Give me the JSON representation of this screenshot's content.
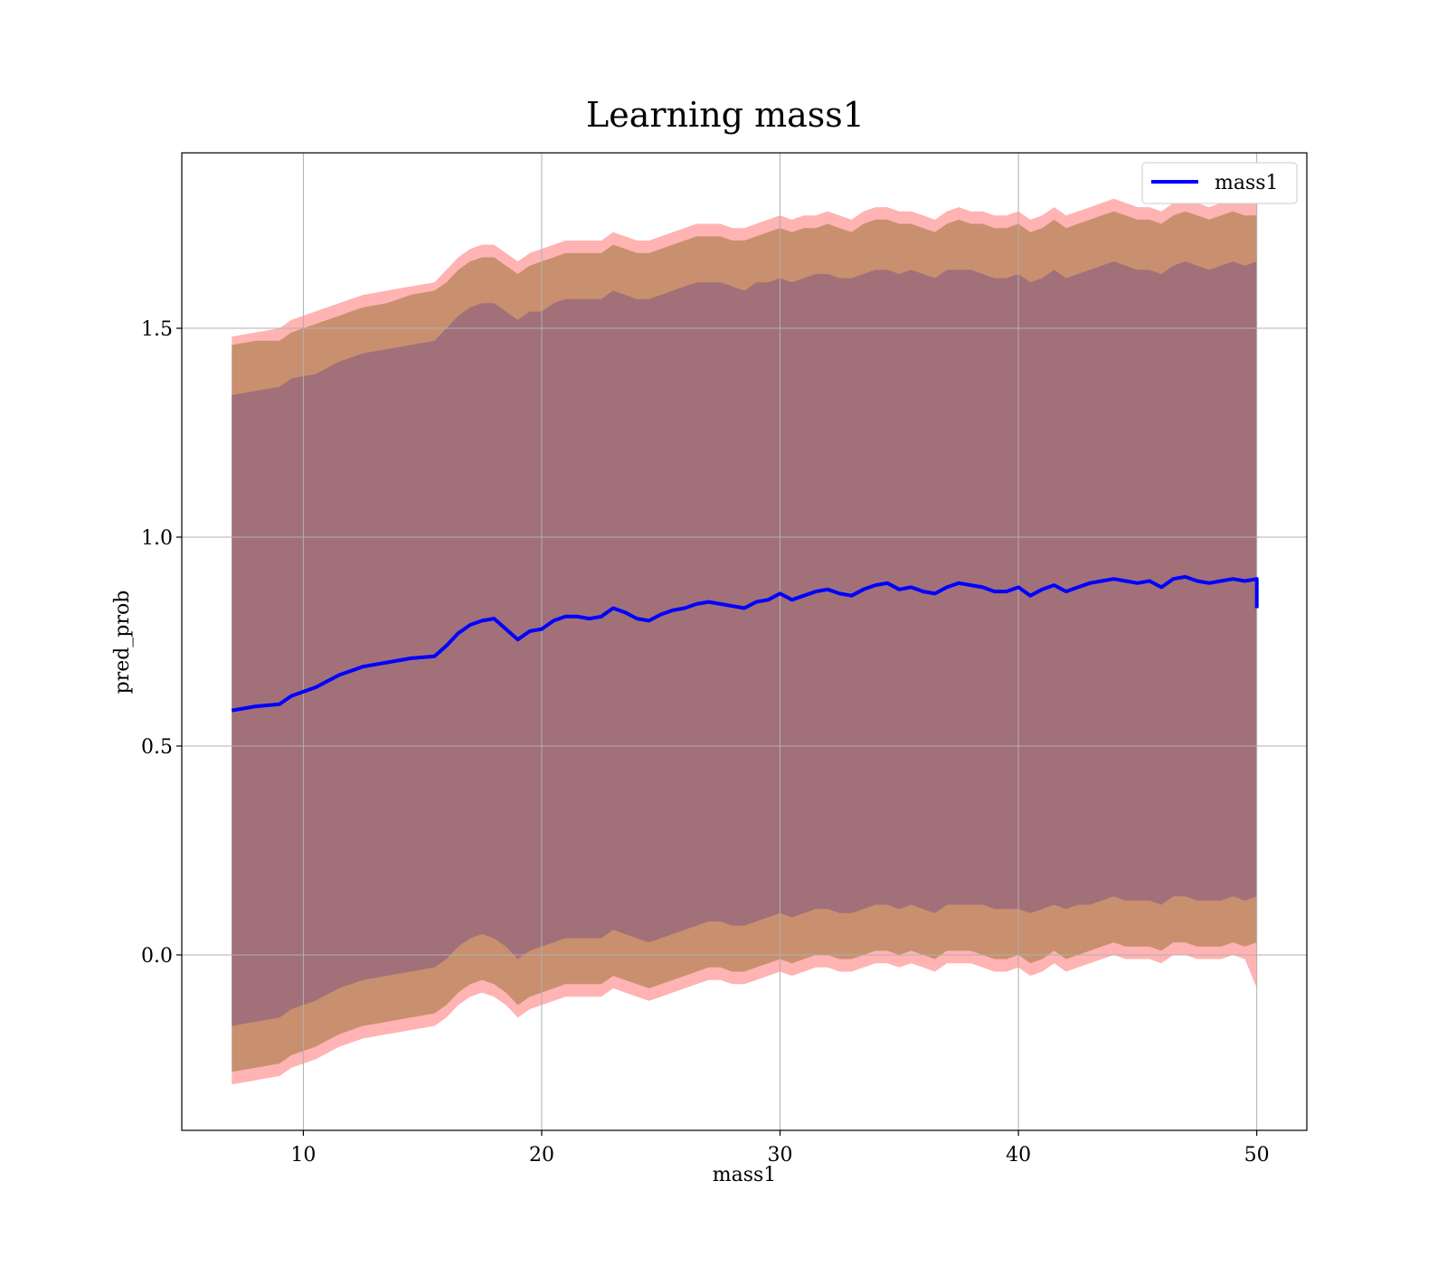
{
  "chart_data": {
    "type": "line",
    "title": "Learning mass1",
    "xlabel": "mass1",
    "ylabel": "pred_prob",
    "xlim": [
      4.9,
      52.1
    ],
    "ylim": [
      -0.42,
      1.92
    ],
    "xticks": [
      10,
      20,
      30,
      40,
      50
    ],
    "yticks": [
      0.0,
      0.5,
      1.0,
      1.5
    ],
    "xtick_labels": [
      "10",
      "20",
      "30",
      "40",
      "50"
    ],
    "ytick_labels": [
      "0.0",
      "0.5",
      "1.0",
      "1.5"
    ],
    "grid": true,
    "legend": {
      "position": "top-right",
      "entries": [
        "mass1"
      ]
    },
    "colors": {
      "line": "#0000ff",
      "band_3sd": "#ff9999",
      "band_2sd": "#c8906f",
      "band_1sd": "#a27079"
    },
    "series": [
      {
        "name": "mass1",
        "x": [
          7.0,
          8.0,
          9.0,
          9.5,
          10.5,
          11.5,
          12.5,
          13.5,
          14.5,
          15.5,
          16.0,
          16.5,
          17.0,
          17.5,
          18.0,
          18.5,
          19.0,
          19.5,
          20.0,
          20.5,
          21.0,
          21.5,
          22.0,
          22.5,
          23.0,
          23.5,
          24.0,
          24.5,
          25.0,
          25.5,
          26.0,
          26.5,
          27.0,
          27.5,
          28.0,
          28.5,
          29.0,
          29.5,
          30.0,
          30.5,
          31.0,
          31.5,
          32.0,
          32.5,
          33.0,
          33.5,
          34.0,
          34.5,
          35.0,
          35.5,
          36.0,
          36.5,
          37.0,
          37.5,
          38.0,
          38.5,
          39.0,
          39.5,
          40.0,
          40.5,
          41.0,
          41.5,
          42.0,
          42.5,
          43.0,
          43.5,
          44.0,
          44.5,
          45.0,
          45.5,
          46.0,
          46.5,
          47.0,
          47.5,
          48.0,
          48.5,
          49.0,
          49.5,
          50.0
        ],
        "y": [
          0.585,
          0.595,
          0.6,
          0.62,
          0.64,
          0.67,
          0.69,
          0.7,
          0.71,
          0.715,
          0.74,
          0.77,
          0.79,
          0.8,
          0.805,
          0.78,
          0.755,
          0.775,
          0.78,
          0.8,
          0.81,
          0.81,
          0.805,
          0.81,
          0.83,
          0.82,
          0.805,
          0.8,
          0.815,
          0.825,
          0.83,
          0.84,
          0.845,
          0.84,
          0.835,
          0.83,
          0.845,
          0.85,
          0.865,
          0.85,
          0.86,
          0.87,
          0.875,
          0.865,
          0.86,
          0.875,
          0.885,
          0.89,
          0.875,
          0.88,
          0.87,
          0.865,
          0.88,
          0.89,
          0.885,
          0.88,
          0.87,
          0.87,
          0.88,
          0.86,
          0.875,
          0.885,
          0.87,
          0.88,
          0.89,
          0.895,
          0.9,
          0.895,
          0.89,
          0.895,
          0.88,
          0.9,
          0.905,
          0.895,
          0.89,
          0.895,
          0.9,
          0.895,
          0.9
        ],
        "lower_1sd": [
          -0.17,
          -0.16,
          -0.15,
          -0.13,
          -0.11,
          -0.08,
          -0.06,
          -0.05,
          -0.04,
          -0.03,
          -0.01,
          0.02,
          0.04,
          0.05,
          0.04,
          0.02,
          -0.01,
          0.01,
          0.02,
          0.03,
          0.04,
          0.04,
          0.04,
          0.04,
          0.06,
          0.05,
          0.04,
          0.03,
          0.04,
          0.05,
          0.06,
          0.07,
          0.08,
          0.08,
          0.07,
          0.07,
          0.08,
          0.09,
          0.1,
          0.09,
          0.1,
          0.11,
          0.11,
          0.1,
          0.1,
          0.11,
          0.12,
          0.12,
          0.11,
          0.12,
          0.11,
          0.1,
          0.12,
          0.12,
          0.12,
          0.12,
          0.11,
          0.11,
          0.11,
          0.1,
          0.11,
          0.12,
          0.11,
          0.12,
          0.12,
          0.13,
          0.14,
          0.13,
          0.13,
          0.13,
          0.12,
          0.14,
          0.14,
          0.13,
          0.13,
          0.13,
          0.14,
          0.13,
          0.14
        ],
        "upper_1sd": [
          1.34,
          1.35,
          1.36,
          1.38,
          1.39,
          1.42,
          1.44,
          1.45,
          1.46,
          1.47,
          1.5,
          1.53,
          1.55,
          1.56,
          1.56,
          1.54,
          1.52,
          1.54,
          1.54,
          1.56,
          1.57,
          1.57,
          1.57,
          1.57,
          1.59,
          1.58,
          1.57,
          1.57,
          1.58,
          1.59,
          1.6,
          1.61,
          1.61,
          1.61,
          1.6,
          1.59,
          1.61,
          1.61,
          1.62,
          1.61,
          1.62,
          1.63,
          1.63,
          1.62,
          1.62,
          1.63,
          1.64,
          1.64,
          1.63,
          1.64,
          1.63,
          1.62,
          1.64,
          1.64,
          1.64,
          1.63,
          1.62,
          1.62,
          1.63,
          1.61,
          1.62,
          1.64,
          1.62,
          1.63,
          1.64,
          1.65,
          1.66,
          1.65,
          1.64,
          1.64,
          1.63,
          1.65,
          1.66,
          1.65,
          1.64,
          1.65,
          1.66,
          1.65,
          1.66
        ],
        "lower_2sd": [
          -0.28,
          -0.27,
          -0.26,
          -0.24,
          -0.22,
          -0.19,
          -0.17,
          -0.16,
          -0.15,
          -0.14,
          -0.12,
          -0.09,
          -0.07,
          -0.06,
          -0.07,
          -0.09,
          -0.12,
          -0.1,
          -0.09,
          -0.08,
          -0.07,
          -0.07,
          -0.07,
          -0.07,
          -0.05,
          -0.06,
          -0.07,
          -0.08,
          -0.07,
          -0.06,
          -0.05,
          -0.04,
          -0.03,
          -0.03,
          -0.04,
          -0.04,
          -0.03,
          -0.02,
          -0.01,
          -0.02,
          -0.01,
          0.0,
          0.0,
          -0.01,
          -0.01,
          0.0,
          0.01,
          0.01,
          0.0,
          0.01,
          0.0,
          -0.01,
          0.01,
          0.01,
          0.01,
          0.0,
          -0.01,
          -0.01,
          0.0,
          -0.02,
          -0.01,
          0.01,
          -0.01,
          0.0,
          0.01,
          0.02,
          0.03,
          0.02,
          0.02,
          0.02,
          0.01,
          0.03,
          0.03,
          0.02,
          0.02,
          0.02,
          0.03,
          0.02,
          0.03
        ],
        "upper_2sd": [
          1.46,
          1.47,
          1.47,
          1.49,
          1.51,
          1.53,
          1.55,
          1.56,
          1.58,
          1.59,
          1.61,
          1.64,
          1.66,
          1.67,
          1.67,
          1.65,
          1.63,
          1.65,
          1.66,
          1.67,
          1.68,
          1.68,
          1.68,
          1.68,
          1.7,
          1.69,
          1.68,
          1.68,
          1.69,
          1.7,
          1.71,
          1.72,
          1.72,
          1.72,
          1.71,
          1.71,
          1.72,
          1.73,
          1.74,
          1.73,
          1.74,
          1.74,
          1.75,
          1.74,
          1.73,
          1.75,
          1.76,
          1.76,
          1.75,
          1.75,
          1.74,
          1.73,
          1.75,
          1.76,
          1.75,
          1.75,
          1.74,
          1.74,
          1.75,
          1.73,
          1.74,
          1.76,
          1.74,
          1.75,
          1.76,
          1.77,
          1.78,
          1.77,
          1.76,
          1.76,
          1.75,
          1.77,
          1.78,
          1.77,
          1.76,
          1.77,
          1.78,
          1.77,
          1.77
        ],
        "lower_3sd": [
          -0.31,
          -0.3,
          -0.29,
          -0.27,
          -0.25,
          -0.22,
          -0.2,
          -0.19,
          -0.18,
          -0.17,
          -0.15,
          -0.12,
          -0.1,
          -0.09,
          -0.1,
          -0.12,
          -0.15,
          -0.13,
          -0.12,
          -0.11,
          -0.1,
          -0.1,
          -0.1,
          -0.1,
          -0.08,
          -0.09,
          -0.1,
          -0.11,
          -0.1,
          -0.09,
          -0.08,
          -0.07,
          -0.06,
          -0.06,
          -0.07,
          -0.07,
          -0.06,
          -0.05,
          -0.04,
          -0.05,
          -0.04,
          -0.03,
          -0.03,
          -0.04,
          -0.04,
          -0.03,
          -0.02,
          -0.02,
          -0.03,
          -0.02,
          -0.03,
          -0.04,
          -0.02,
          -0.02,
          -0.02,
          -0.03,
          -0.04,
          -0.04,
          -0.03,
          -0.05,
          -0.04,
          -0.02,
          -0.04,
          -0.03,
          -0.02,
          -0.01,
          0.0,
          -0.01,
          -0.01,
          -0.01,
          -0.02,
          0.0,
          0.0,
          -0.01,
          -0.01,
          -0.01,
          0.0,
          -0.01,
          -0.08
        ],
        "upper_3sd": [
          1.48,
          1.49,
          1.5,
          1.52,
          1.54,
          1.56,
          1.58,
          1.59,
          1.6,
          1.61,
          1.64,
          1.67,
          1.69,
          1.7,
          1.7,
          1.68,
          1.66,
          1.68,
          1.69,
          1.7,
          1.71,
          1.71,
          1.71,
          1.71,
          1.73,
          1.72,
          1.71,
          1.71,
          1.72,
          1.73,
          1.74,
          1.75,
          1.75,
          1.75,
          1.74,
          1.74,
          1.75,
          1.76,
          1.77,
          1.76,
          1.77,
          1.77,
          1.78,
          1.77,
          1.76,
          1.78,
          1.79,
          1.79,
          1.78,
          1.78,
          1.77,
          1.76,
          1.78,
          1.79,
          1.78,
          1.78,
          1.77,
          1.77,
          1.78,
          1.76,
          1.77,
          1.79,
          1.77,
          1.78,
          1.79,
          1.8,
          1.81,
          1.8,
          1.79,
          1.79,
          1.78,
          1.8,
          1.81,
          1.8,
          1.79,
          1.8,
          1.81,
          1.8,
          1.8
        ]
      }
    ]
  }
}
